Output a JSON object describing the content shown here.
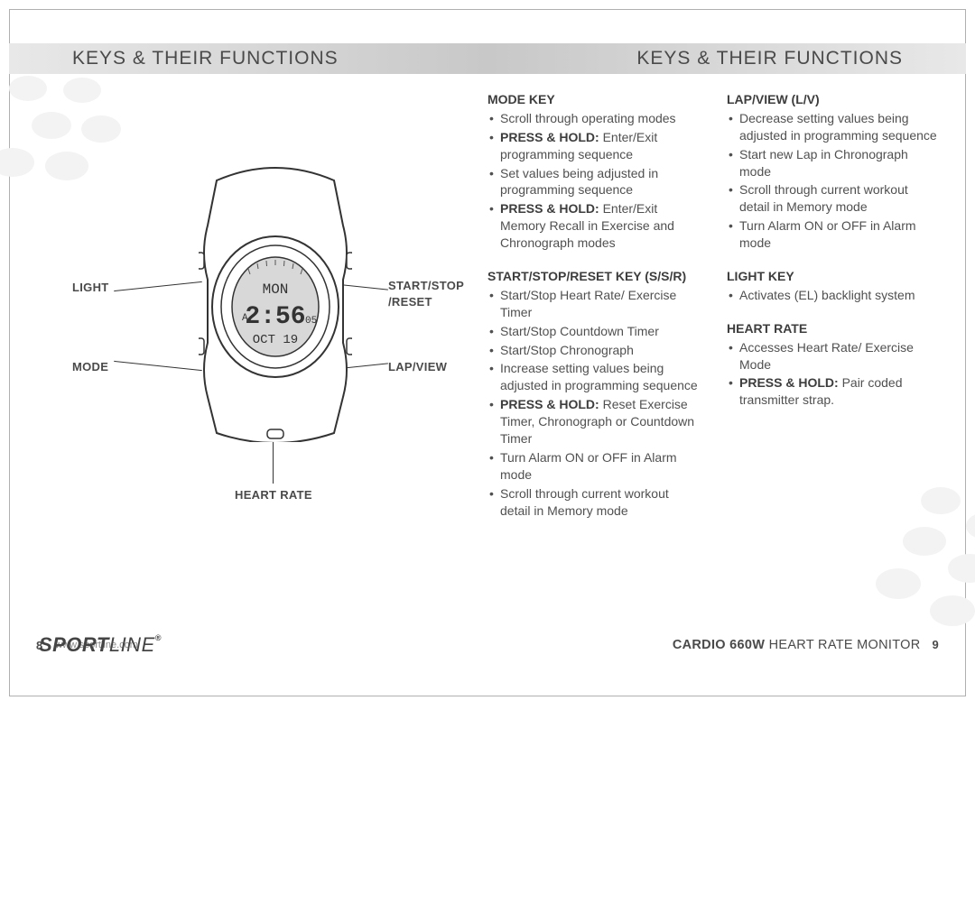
{
  "header": {
    "left": "KEYS & THEIR FUNCTIONS",
    "right": "KEYS & THEIR FUNCTIONS"
  },
  "watch": {
    "labels": {
      "light": "LIGHT",
      "mode": "MODE",
      "start_stop": "START/STOP",
      "reset": "/RESET",
      "lap_view": "LAP/VIEW",
      "heart_rate": "HEART RATE"
    },
    "display": {
      "day": "MON",
      "time": "2:56",
      "sec": "05",
      "date": "OCT 19",
      "ampm": "A"
    }
  },
  "sections": {
    "mode": {
      "title": "MODE KEY",
      "items": [
        {
          "t": "Scroll through operating modes"
        },
        {
          "b": "PRESS & HOLD:",
          "t": " Enter/Exit programming sequence"
        },
        {
          "t": "Set values being adjusted in programming sequence"
        },
        {
          "b": "PRESS & HOLD:",
          "t": " Enter/Exit Memory Recall in Exercise and Chronograph modes"
        }
      ]
    },
    "ssr": {
      "title": "START/STOP/RESET KEY (S/S/R)",
      "items": [
        {
          "t": "Start/Stop Heart Rate/ Exercise Timer"
        },
        {
          "t": "Start/Stop Countdown Timer"
        },
        {
          "t": "Start/Stop Chronograph"
        },
        {
          "t": "Increase setting values being adjusted in programming sequence"
        },
        {
          "b": "PRESS & HOLD:",
          "t": " Reset Exercise Timer, Chronograph or Countdown Timer"
        },
        {
          "t": "Turn Alarm ON or OFF in Alarm mode"
        },
        {
          "t": "Scroll through current workout detail in Memory mode"
        }
      ]
    },
    "lapview": {
      "title": "LAP/VIEW (L/V)",
      "items": [
        {
          "t": "Decrease setting values being adjusted in programming sequence"
        },
        {
          "t": "Start new Lap in Chronograph mode"
        },
        {
          "t": "Scroll through current workout detail in Memory mode"
        },
        {
          "t": "Turn Alarm ON or OFF in Alarm mode"
        }
      ]
    },
    "light": {
      "title": "LIGHT KEY",
      "items": [
        {
          "t": "Activates (EL) backlight system"
        }
      ]
    },
    "heartrate": {
      "title": "HEART RATE",
      "items": [
        {
          "t": "Accesses Heart Rate/ Exercise Mode"
        },
        {
          "b": "PRESS & HOLD:",
          "t": " Pair coded transmitter strap."
        }
      ]
    }
  },
  "footer": {
    "page_left": "8",
    "url": "www.sportline.com",
    "logo_a": "SPORT",
    "logo_b": "LINE",
    "product_bold": "CARDIO 660W",
    "product_rest": " HEART RATE MONITOR",
    "page_right": "9"
  },
  "style": {
    "bubble_color": "#f3f3f3",
    "header_gradient": [
      "#e8e8e8",
      "#c8c8c8",
      "#e8e8e8"
    ],
    "text_color": "#505050",
    "title_color": "#3d3d3d"
  }
}
